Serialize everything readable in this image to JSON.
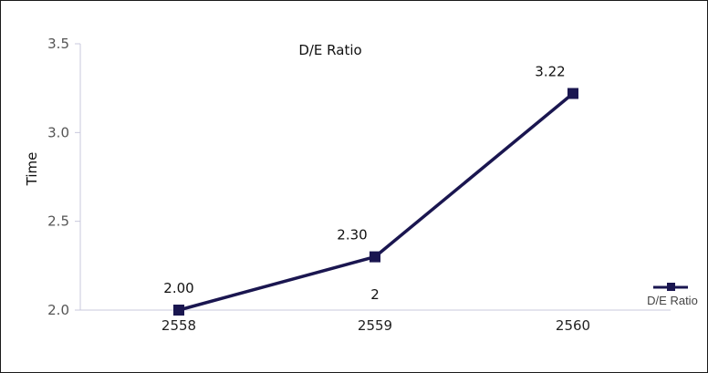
{
  "chart_data": {
    "type": "line",
    "title": "D/E Ratio",
    "xlabel": "",
    "ylabel": "Time",
    "categories": [
      "2558",
      "2559",
      "2560"
    ],
    "series": [
      {
        "name": "D/E Ratio",
        "values": [
          2.0,
          2.3,
          3.22
        ],
        "data_labels": [
          "2.00",
          "2.30",
          "3.22"
        ]
      }
    ],
    "ylim": [
      2.0,
      3.5
    ],
    "y_ticks": [
      "2.0",
      "2.5",
      "3.0",
      "3.5"
    ],
    "annotation": "2",
    "legend_position": "right",
    "grid": false,
    "colors": {
      "series": "#1a1650",
      "axis": "#c8c8dc"
    }
  }
}
